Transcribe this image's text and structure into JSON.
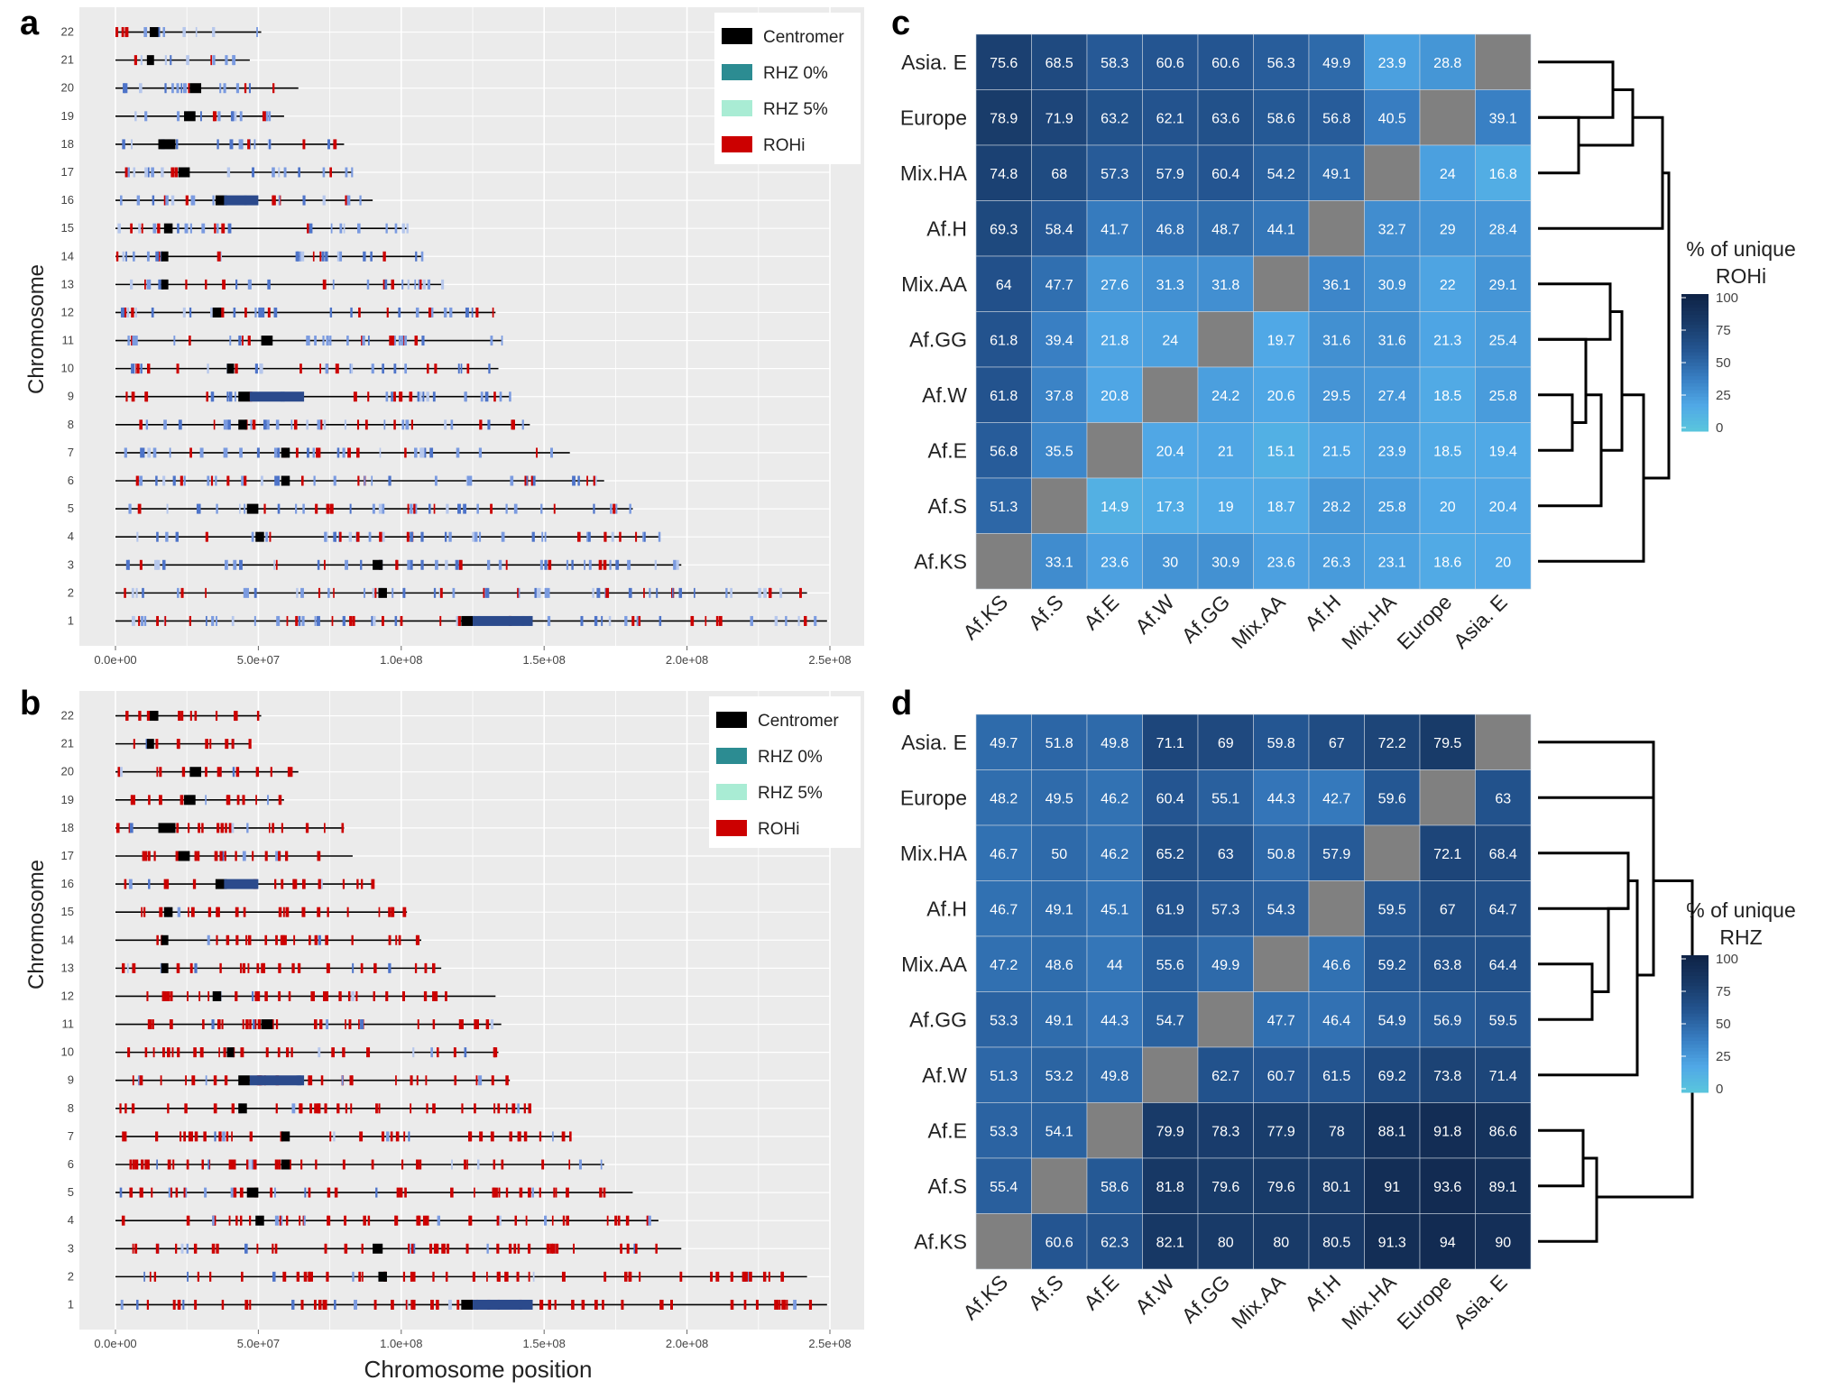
{
  "colors": {
    "panel_bg": "#ebebeb",
    "grid": "#ffffff",
    "centromer": "#000000",
    "rhz0": "#2c8c92",
    "rhz5": "#a9ecd4",
    "rohi": "#cc0000",
    "rhz_dense": "#2b4a8c",
    "rhz_light": "#7b9be0",
    "diag": "#808080"
  },
  "panels": {
    "a": {
      "letter": "a",
      "y_title": "Chromosome",
      "x_title": ""
    },
    "b": {
      "letter": "b",
      "y_title": "Chromosome",
      "x_title": "Chromosome position"
    },
    "c": {
      "letter": "c"
    },
    "d": {
      "letter": "d"
    }
  },
  "legend": {
    "items": [
      {
        "label": "Centromer",
        "color": "#000000"
      },
      {
        "label": "RHZ 0%",
        "color": "#2c8c92"
      },
      {
        "label": "RHZ 5%",
        "color": "#a9ecd4"
      },
      {
        "label": "ROHi",
        "color": "#cc0000"
      }
    ]
  },
  "chart_data": [
    {
      "panel": "a",
      "type": "scatter",
      "title": "",
      "xlabel": "",
      "ylabel": "Chromosome",
      "xlim": [
        0,
        250000000
      ],
      "x_ticks": [
        0,
        50000000,
        100000000,
        150000000,
        200000000,
        250000000
      ],
      "x_tick_labels": [
        "0.0e+00",
        "5.0e+07",
        "1.0e+08",
        "1.5e+08",
        "2.0e+08",
        "2.5e+08"
      ],
      "chromosomes": [
        "1",
        "2",
        "3",
        "4",
        "5",
        "6",
        "7",
        "8",
        "9",
        "10",
        "11",
        "12",
        "13",
        "14",
        "15",
        "16",
        "17",
        "18",
        "19",
        "20",
        "21",
        "22"
      ],
      "chrom_lengths_mb": [
        249,
        242,
        198,
        190,
        181,
        171,
        159,
        145,
        138,
        134,
        135,
        133,
        114,
        107,
        102,
        90,
        83,
        80,
        59,
        64,
        47,
        51
      ],
      "centromere_mb": [
        [
          121,
          125
        ],
        [
          92,
          95
        ],
        [
          90,
          93.5
        ],
        [
          49,
          52
        ],
        [
          46,
          50
        ],
        [
          58,
          61
        ],
        [
          58,
          61
        ],
        [
          43,
          46
        ],
        [
          43,
          47
        ],
        [
          39,
          41.5
        ],
        [
          51,
          55
        ],
        [
          34,
          37
        ],
        [
          16,
          18.5
        ],
        [
          16,
          18.5
        ],
        [
          17,
          20
        ],
        [
          35,
          39
        ],
        [
          22,
          26
        ],
        [
          15,
          21
        ],
        [
          24,
          28
        ],
        [
          26,
          30
        ],
        [
          11,
          13.5
        ],
        [
          12,
          15
        ]
      ],
      "rohi_ratio": 0.3,
      "seed": 11
    },
    {
      "panel": "b",
      "type": "scatter",
      "title": "",
      "xlabel": "Chromosome position",
      "ylabel": "Chromosome",
      "xlim": [
        0,
        250000000
      ],
      "x_ticks": [
        0,
        50000000,
        100000000,
        150000000,
        200000000,
        250000000
      ],
      "x_tick_labels": [
        "0.0e+00",
        "5.0e+07",
        "1.0e+08",
        "1.5e+08",
        "2.0e+08",
        "2.5e+08"
      ],
      "chromosomes": [
        "1",
        "2",
        "3",
        "4",
        "5",
        "6",
        "7",
        "8",
        "9",
        "10",
        "11",
        "12",
        "13",
        "14",
        "15",
        "16",
        "17",
        "18",
        "19",
        "20",
        "21",
        "22"
      ],
      "chrom_lengths_mb": [
        249,
        242,
        198,
        190,
        181,
        171,
        159,
        145,
        138,
        134,
        135,
        133,
        114,
        107,
        102,
        90,
        83,
        80,
        59,
        64,
        47,
        51
      ],
      "centromere_mb": [
        [
          121,
          125
        ],
        [
          92,
          95
        ],
        [
          90,
          93.5
        ],
        [
          49,
          52
        ],
        [
          46,
          50
        ],
        [
          58,
          61
        ],
        [
          58,
          61
        ],
        [
          43,
          46
        ],
        [
          43,
          47
        ],
        [
          39,
          41.5
        ],
        [
          51,
          55
        ],
        [
          34,
          37
        ],
        [
          16,
          18.5
        ],
        [
          16,
          18.5
        ],
        [
          17,
          20
        ],
        [
          35,
          39
        ],
        [
          22,
          26
        ],
        [
          15,
          21
        ],
        [
          24,
          28
        ],
        [
          26,
          30
        ],
        [
          11,
          13.5
        ],
        [
          12,
          15
        ]
      ],
      "rohi_ratio": 0.85,
      "seed": 29
    },
    {
      "panel": "c",
      "type": "heatmap",
      "legend_title": [
        "% of unique",
        "ROHi"
      ],
      "legend_ticks": [
        100,
        75,
        50,
        25,
        0
      ],
      "rows": [
        "Asia. E",
        "Europe",
        "Mix.HA",
        "Af.H",
        "Mix.AA",
        "Af.GG",
        "Af.W",
        "Af.E",
        "Af.S",
        "Af.KS"
      ],
      "cols": [
        "Af.KS",
        "Af.S",
        "Af.E",
        "Af.W",
        "Af.GG",
        "Mix.AA",
        "Af.H",
        "Mix.HA",
        "Europe",
        "Asia. E"
      ],
      "values": [
        [
          "75.6",
          "68.5",
          "58.3",
          "60.6",
          "60.6",
          "56.3",
          "49.9",
          "23.9",
          "28.8",
          null
        ],
        [
          "78.9",
          "71.9",
          "63.2",
          "62.1",
          "63.6",
          "58.6",
          "56.8",
          "40.5",
          null,
          "39.1"
        ],
        [
          "74.8",
          "68",
          "57.3",
          "57.9",
          "60.4",
          "54.2",
          "49.1",
          null,
          "24",
          "16.8"
        ],
        [
          "69.3",
          "58.4",
          "41.7",
          "46.8",
          "48.7",
          "44.1",
          null,
          "32.7",
          "29",
          "28.4"
        ],
        [
          "64",
          "47.7",
          "27.6",
          "31.3",
          "31.8",
          null,
          "36.1",
          "30.9",
          "22",
          "29.1"
        ],
        [
          "61.8",
          "39.4",
          "21.8",
          "24",
          null,
          "19.7",
          "31.6",
          "31.6",
          "21.3",
          "25.4"
        ],
        [
          "61.8",
          "37.8",
          "20.8",
          null,
          "24.2",
          "20.6",
          "29.5",
          "27.4",
          "18.5",
          "25.8"
        ],
        [
          "56.8",
          "35.5",
          null,
          "20.4",
          "21",
          "15.1",
          "21.5",
          "23.9",
          "18.5",
          "19.4"
        ],
        [
          "51.3",
          null,
          "14.9",
          "17.3",
          "19",
          "18.7",
          "28.2",
          "25.8",
          "20",
          "20.4"
        ],
        [
          null,
          "33.1",
          "23.6",
          "30",
          "30.9",
          "23.6",
          "26.3",
          "23.1",
          "18.6",
          "20"
        ]
      ]
    },
    {
      "panel": "d",
      "type": "heatmap",
      "legend_title": [
        "% of unique",
        "RHZ"
      ],
      "legend_ticks": [
        100,
        75,
        50,
        25,
        0
      ],
      "rows": [
        "Asia. E",
        "Europe",
        "Mix.HA",
        "Af.H",
        "Mix.AA",
        "Af.GG",
        "Af.W",
        "Af.E",
        "Af.S",
        "Af.KS"
      ],
      "cols": [
        "Af.KS",
        "Af.S",
        "Af.E",
        "Af.W",
        "Af.GG",
        "Mix.AA",
        "Af.H",
        "Mix.HA",
        "Europe",
        "Asia. E"
      ],
      "values": [
        [
          "49.7",
          "51.8",
          "49.8",
          "71.1",
          "69",
          "59.8",
          "67",
          "72.2",
          "79.5",
          null
        ],
        [
          "48.2",
          "49.5",
          "46.2",
          "60.4",
          "55.1",
          "44.3",
          "42.7",
          "59.6",
          null,
          "63"
        ],
        [
          "46.7",
          "50",
          "46.2",
          "65.2",
          "63",
          "50.8",
          "57.9",
          null,
          "72.1",
          "68.4"
        ],
        [
          "46.7",
          "49.1",
          "45.1",
          "61.9",
          "57.3",
          "54.3",
          null,
          "59.5",
          "67",
          "64.7"
        ],
        [
          "47.2",
          "48.6",
          "44",
          "55.6",
          "49.9",
          null,
          "46.6",
          "59.2",
          "63.8",
          "64.4"
        ],
        [
          "53.3",
          "49.1",
          "44.3",
          "54.7",
          null,
          "47.7",
          "46.4",
          "54.9",
          "56.9",
          "59.5"
        ],
        [
          "51.3",
          "53.2",
          "49.8",
          null,
          "62.7",
          "60.7",
          "61.5",
          "69.2",
          "73.8",
          "71.4"
        ],
        [
          "53.3",
          "54.1",
          null,
          "79.9",
          "78.3",
          "77.9",
          "78",
          "88.1",
          "91.8",
          "86.6"
        ],
        [
          "55.4",
          null,
          "58.6",
          "81.8",
          "79.6",
          "79.6",
          "80.1",
          "91",
          "93.6",
          "89.1"
        ],
        [
          null,
          "60.6",
          "62.3",
          "82.1",
          "80",
          "80",
          "80.5",
          "91.3",
          "94",
          "90"
        ]
      ]
    }
  ]
}
